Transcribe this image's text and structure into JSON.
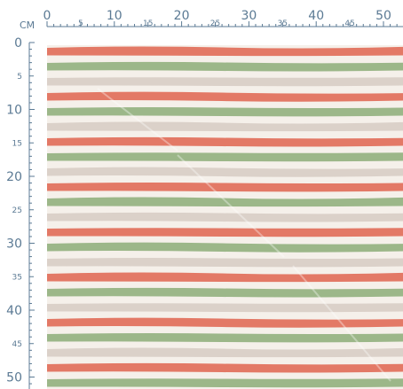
{
  "ruler": {
    "unit_label": "CM",
    "top_major_labels": [
      "0",
      "10",
      "20",
      "30",
      "40",
      "50"
    ],
    "top_minor_labels": [
      "5",
      "15",
      "25",
      "35",
      "45"
    ],
    "left_major_labels": [
      "0",
      "10",
      "20",
      "30",
      "40",
      "50"
    ],
    "left_minor_labels": [
      "5",
      "15",
      "25",
      "35",
      "45"
    ],
    "color": "#5b7a94"
  },
  "fabric": {
    "background_color": "#f5f0ea",
    "stripe_colors": {
      "red": "#e2725f",
      "green": "#97b384",
      "taupe": "#d9cfc7"
    },
    "stripe_sequence": [
      "red",
      "green",
      "taupe"
    ]
  }
}
